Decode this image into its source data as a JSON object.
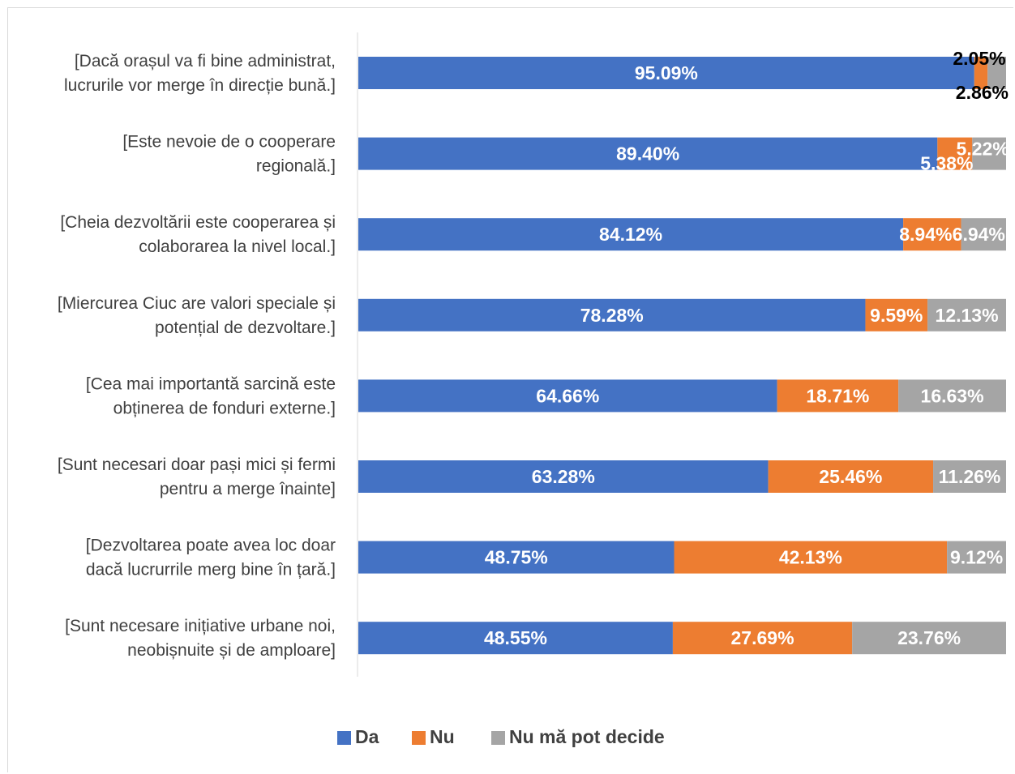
{
  "chart_data": {
    "type": "bar",
    "orientation": "horizontal",
    "stacked": "percent",
    "categories": [
      "[Dacă orașul va fi bine administrat, lucrurile vor merge în direcție bună.]",
      "[Este nevoie de o cooperare regională.]",
      "[Cheia dezvoltării este cooperarea și colaborarea la nivel local.]",
      "[Miercurea Ciuc are valori speciale și potențial de dezvoltare.]",
      "[Cea mai importantă sarcină este obținerea de fonduri externe.]",
      "[Sunt necesari doar pași mici și fermi pentru a merge înainte]",
      "[Dezvoltarea poate avea loc doar dacă lucrurrile merg bine în țară.]",
      "[Sunt necesare inițiative urbane noi, neobișnuite și de amploare]"
    ],
    "category_lines": [
      [
        "[Dacă orașul va fi bine administrat,",
        "lucrurile vor merge în direcție bună.]"
      ],
      [
        "[Este nevoie de o cooperare",
        "regională.]"
      ],
      [
        "[Cheia dezvoltării este cooperarea și",
        "colaborarea la nivel local.]"
      ],
      [
        "[Miercurea Ciuc are valori speciale și",
        "potențial de dezvoltare.]"
      ],
      [
        "[Cea mai importantă sarcină este",
        "obținerea de fonduri externe.]"
      ],
      [
        "[Sunt necesari doar pași mici și fermi",
        "pentru a merge înainte]"
      ],
      [
        "[Dezvoltarea poate avea loc doar",
        "dacă lucrurrile merg bine în țară.]"
      ],
      [
        "[Sunt necesare inițiative urbane noi,",
        "neobișnuite și de amploare]"
      ]
    ],
    "series": [
      {
        "name": "Da",
        "color": "#4472c4",
        "values": [
          95.09,
          89.4,
          84.12,
          78.28,
          64.66,
          63.28,
          48.75,
          48.55
        ],
        "labels": [
          "95.09%",
          "89.40%",
          "84.12%",
          "78.28%",
          "64.66%",
          "63.28%",
          "48.75%",
          "48.55%"
        ]
      },
      {
        "name": "Nu",
        "color": "#ed7d31",
        "values": [
          2.05,
          5.38,
          8.94,
          9.59,
          18.71,
          25.46,
          42.13,
          27.69
        ],
        "labels": [
          "2.05%",
          "5.38%",
          "8.94%",
          "9.59%",
          "18.71%",
          "25.46%",
          "42.13%",
          "27.69%"
        ]
      },
      {
        "name": "Nu mă pot decide",
        "color": "#a5a5a5",
        "values": [
          2.86,
          5.22,
          6.94,
          12.13,
          16.63,
          11.26,
          9.12,
          23.76
        ],
        "labels": [
          "2.86%",
          "5.22%",
          "6.94%",
          "12.13%",
          "16.63%",
          "11.26%",
          "9.12%",
          "23.76%"
        ]
      }
    ],
    "xlim": [
      0,
      100
    ],
    "legend": "bottom-center",
    "grid": false
  }
}
